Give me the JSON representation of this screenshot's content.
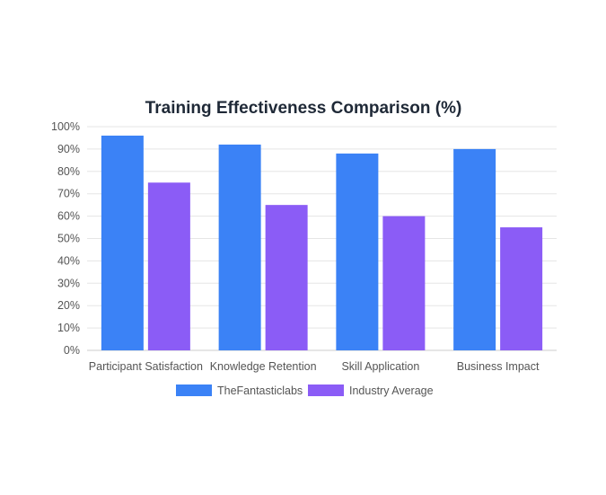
{
  "chart_data": {
    "type": "bar",
    "title": "Training Effectiveness Comparison (%)",
    "xlabel": "",
    "ylabel": "",
    "categories": [
      "Participant Satisfaction",
      "Knowledge Retention",
      "Skill Application",
      "Business Impact"
    ],
    "series": [
      {
        "name": "TheFantasticlabs",
        "values": [
          96,
          92,
          88,
          90
        ],
        "color": "#3b82f6"
      },
      {
        "name": "Industry Average",
        "values": [
          75,
          65,
          60,
          55
        ],
        "color": "#8b5cf6"
      }
    ],
    "ylim": [
      0,
      100
    ],
    "yticks": [
      0,
      10,
      20,
      30,
      40,
      50,
      60,
      70,
      80,
      90,
      100
    ],
    "ytick_labels": [
      "0%",
      "10%",
      "20%",
      "30%",
      "40%",
      "50%",
      "60%",
      "70%",
      "80%",
      "90%",
      "100%"
    ],
    "grid": true,
    "legend_position": "bottom"
  }
}
